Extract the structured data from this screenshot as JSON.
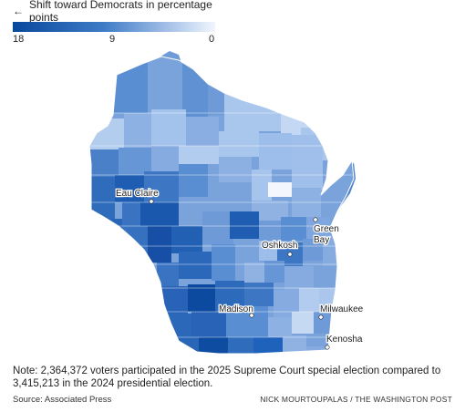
{
  "legend": {
    "title": "Shift toward Democrats in percentage points",
    "arrow": "←",
    "ticks": [
      "18",
      "9",
      "0"
    ],
    "scale": {
      "max": 18,
      "min": 0
    },
    "colors": [
      "#08489c",
      "#3f7bc6",
      "#9fbde6",
      "#f1f6fd"
    ]
  },
  "cities": {
    "eau_claire": "Eau Claire",
    "green_bay": "Green\nBay",
    "oshkosh": "Oshkosh",
    "madison": "Madison",
    "milwaukee": "Milwaukee",
    "kenosha": "Kenosha"
  },
  "note": "Note: 2,364,372 voters participated in the 2025 Supreme Court special election compared to 3,415,213 in the 2024 presidential election.",
  "source": "Source: Associated Press",
  "credit": "NICK MOURTOUPALAS / THE WASHINGTON POST"
}
